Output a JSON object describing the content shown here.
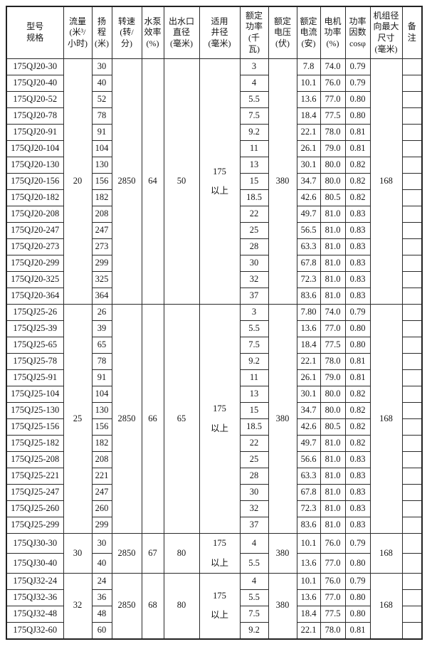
{
  "table": {
    "headers": [
      {
        "id": "model",
        "label": "型号\n规格"
      },
      {
        "id": "flow",
        "label": "流量\n(米³/\n小时)"
      },
      {
        "id": "head",
        "label": "扬\n程\n(米)"
      },
      {
        "id": "speed",
        "label": "转速\n(转/\n分)"
      },
      {
        "id": "pump_eff",
        "label": "水泵\n效率\n(%)"
      },
      {
        "id": "outlet",
        "label": "出水口\n直径\n(毫米)"
      },
      {
        "id": "well",
        "label": "适用\n井径\n(毫米)"
      },
      {
        "id": "power",
        "label": "额定\n功率\n(千\n瓦)"
      },
      {
        "id": "voltage",
        "label": "额定\n电压\n(伏)"
      },
      {
        "id": "current",
        "label": "额定\n电流\n(安)"
      },
      {
        "id": "motor_eff",
        "label": "电机\n功率\n(%)"
      },
      {
        "id": "cos_phi",
        "label": "功率\n因数\ncosφ"
      },
      {
        "id": "radial",
        "label": "机组径\n向最大\n尺寸\n(毫米)"
      },
      {
        "id": "remark",
        "label": "备\n注"
      }
    ],
    "sections": [
      {
        "flow": "20",
        "speed": "2850",
        "pump_eff": "64",
        "outlet": "50",
        "well": "175\n以上",
        "voltage": "380",
        "radial": "168",
        "rows": [
          {
            "model": "175QJ20-30",
            "head": "30",
            "power": "3",
            "current": "7.8",
            "motor_eff": "74.0",
            "cos_phi": "0.79",
            "remark": ""
          },
          {
            "model": "175QJ20-40",
            "head": "40",
            "power": "4",
            "current": "10.1",
            "motor_eff": "76.0",
            "cos_phi": "0.79",
            "remark": ""
          },
          {
            "model": "175QJ20-52",
            "head": "52",
            "power": "5.5",
            "current": "13.6",
            "motor_eff": "77.0",
            "cos_phi": "0.80",
            "remark": ""
          },
          {
            "model": "175QJ20-78",
            "head": "78",
            "power": "7.5",
            "current": "18.4",
            "motor_eff": "77.5",
            "cos_phi": "0.80",
            "remark": ""
          },
          {
            "model": "175QJ20-91",
            "head": "91",
            "power": "9.2",
            "current": "22.1",
            "motor_eff": "78.0",
            "cos_phi": "0.81",
            "remark": ""
          },
          {
            "model": "175QJ20-104",
            "head": "104",
            "power": "11",
            "current": "26.1",
            "motor_eff": "79.0",
            "cos_phi": "0.81",
            "remark": ""
          },
          {
            "model": "175QJ20-130",
            "head": "130",
            "power": "13",
            "current": "30.1",
            "motor_eff": "80.0",
            "cos_phi": "0.82",
            "remark": ""
          },
          {
            "model": "175QJ20-156",
            "head": "156",
            "power": "15",
            "current": "34.7",
            "motor_eff": "80.0",
            "cos_phi": "0.82",
            "remark": ""
          },
          {
            "model": "175QJ20-182",
            "head": "182",
            "power": "18.5",
            "current": "42.6",
            "motor_eff": "80.5",
            "cos_phi": "0.82",
            "remark": ""
          },
          {
            "model": "175QJ20-208",
            "head": "208",
            "power": "22",
            "current": "49.7",
            "motor_eff": "81.0",
            "cos_phi": "0.83",
            "remark": ""
          },
          {
            "model": "175QJ20-247",
            "head": "247",
            "power": "25",
            "current": "56.5",
            "motor_eff": "81.0",
            "cos_phi": "0.83",
            "remark": ""
          },
          {
            "model": "175QJ20-273",
            "head": "273",
            "power": "28",
            "current": "63.3",
            "motor_eff": "81.0",
            "cos_phi": "0.83",
            "remark": ""
          },
          {
            "model": "175QJ20-299",
            "head": "299",
            "power": "30",
            "current": "67.8",
            "motor_eff": "81.0",
            "cos_phi": "0.83",
            "remark": ""
          },
          {
            "model": "175QJ20-325",
            "head": "325",
            "power": "32",
            "current": "72.3",
            "motor_eff": "81.0",
            "cos_phi": "0.83",
            "remark": ""
          },
          {
            "model": "175QJ20-364",
            "head": "364",
            "power": "37",
            "current": "83.6",
            "motor_eff": "81.0",
            "cos_phi": "0.83",
            "remark": ""
          }
        ]
      },
      {
        "flow": "25",
        "speed": "2850",
        "pump_eff": "66",
        "outlet": "65",
        "well": "175\n以上",
        "voltage": "380",
        "radial": "168",
        "rows": [
          {
            "model": "175QJ25-26",
            "head": "26",
            "power": "3",
            "current": "7.80",
            "motor_eff": "74.0",
            "cos_phi": "0.79",
            "remark": ""
          },
          {
            "model": "175QJ25-39",
            "head": "39",
            "power": "5.5",
            "current": "13.6",
            "motor_eff": "77.0",
            "cos_phi": "0.80",
            "remark": ""
          },
          {
            "model": "175QJ25-65",
            "head": "65",
            "power": "7.5",
            "current": "18.4",
            "motor_eff": "77.5",
            "cos_phi": "0.80",
            "remark": ""
          },
          {
            "model": "175QJ25-78",
            "head": "78",
            "power": "9.2",
            "current": "22.1",
            "motor_eff": "78.0",
            "cos_phi": "0.81",
            "remark": ""
          },
          {
            "model": "175QJ25-91",
            "head": "91",
            "power": "11",
            "current": "26.1",
            "motor_eff": "79.0",
            "cos_phi": "0.81",
            "remark": ""
          },
          {
            "model": "175QJ25-104",
            "head": "104",
            "power": "13",
            "current": "30.1",
            "motor_eff": "80.0",
            "cos_phi": "0.82",
            "remark": ""
          },
          {
            "model": "175QJ25-130",
            "head": "130",
            "power": "15",
            "current": "34.7",
            "motor_eff": "80.0",
            "cos_phi": "0.82",
            "remark": ""
          },
          {
            "model": "175QJ25-156",
            "head": "156",
            "power": "18.5",
            "current": "42.6",
            "motor_eff": "80.5",
            "cos_phi": "0.82",
            "remark": ""
          },
          {
            "model": "175QJ25-182",
            "head": "182",
            "power": "22",
            "current": "49.7",
            "motor_eff": "81.0",
            "cos_phi": "0.82",
            "remark": ""
          },
          {
            "model": "175QJ25-208",
            "head": "208",
            "power": "25",
            "current": "56.6",
            "motor_eff": "81.0",
            "cos_phi": "0.83",
            "remark": ""
          },
          {
            "model": "175QJ25-221",
            "head": "221",
            "power": "28",
            "current": "63.3",
            "motor_eff": "81.0",
            "cos_phi": "0.83",
            "remark": ""
          },
          {
            "model": "175QJ25-247",
            "head": "247",
            "power": "30",
            "current": "67.8",
            "motor_eff": "81.0",
            "cos_phi": "0.83",
            "remark": ""
          },
          {
            "model": "175QJ25-260",
            "head": "260",
            "power": "32",
            "current": "72.3",
            "motor_eff": "81.0",
            "cos_phi": "0.83",
            "remark": ""
          },
          {
            "model": "175QJ25-299",
            "head": "299",
            "power": "37",
            "current": "83.6",
            "motor_eff": "81.0",
            "cos_phi": "0.83",
            "remark": ""
          }
        ]
      },
      {
        "flow": "30",
        "speed": "2850",
        "pump_eff": "67",
        "outlet": "80",
        "well": "175\n以上",
        "voltage": "380",
        "radial": "168",
        "rows": [
          {
            "model": "175QJ30-30",
            "head": "30",
            "power": "4",
            "current": "10.1",
            "motor_eff": "76.0",
            "cos_phi": "0.79",
            "remark": ""
          },
          {
            "model": "175QJ30-40",
            "head": "40",
            "power": "5.5",
            "current": "13.6",
            "motor_eff": "77.0",
            "cos_phi": "0.80",
            "remark": ""
          }
        ]
      },
      {
        "flow": "32",
        "speed": "2850",
        "pump_eff": "68",
        "outlet": "80",
        "well": "175\n以上",
        "voltage": "380",
        "radial": "168",
        "rows": [
          {
            "model": "175QJ32-24",
            "head": "24",
            "power": "4",
            "current": "10.1",
            "motor_eff": "76.0",
            "cos_phi": "0.79",
            "remark": ""
          },
          {
            "model": "175QJ32-36",
            "head": "36",
            "power": "5.5",
            "current": "13.6",
            "motor_eff": "77.0",
            "cos_phi": "0.80",
            "remark": ""
          },
          {
            "model": "175QJ32-48",
            "head": "48",
            "power": "7.5",
            "current": "18.4",
            "motor_eff": "77.5",
            "cos_phi": "0.80",
            "remark": ""
          },
          {
            "model": "175QJ32-60",
            "head": "60",
            "power": "9.2",
            "current": "22.1",
            "motor_eff": "78.0",
            "cos_phi": "0.81",
            "remark": ""
          }
        ]
      }
    ]
  }
}
